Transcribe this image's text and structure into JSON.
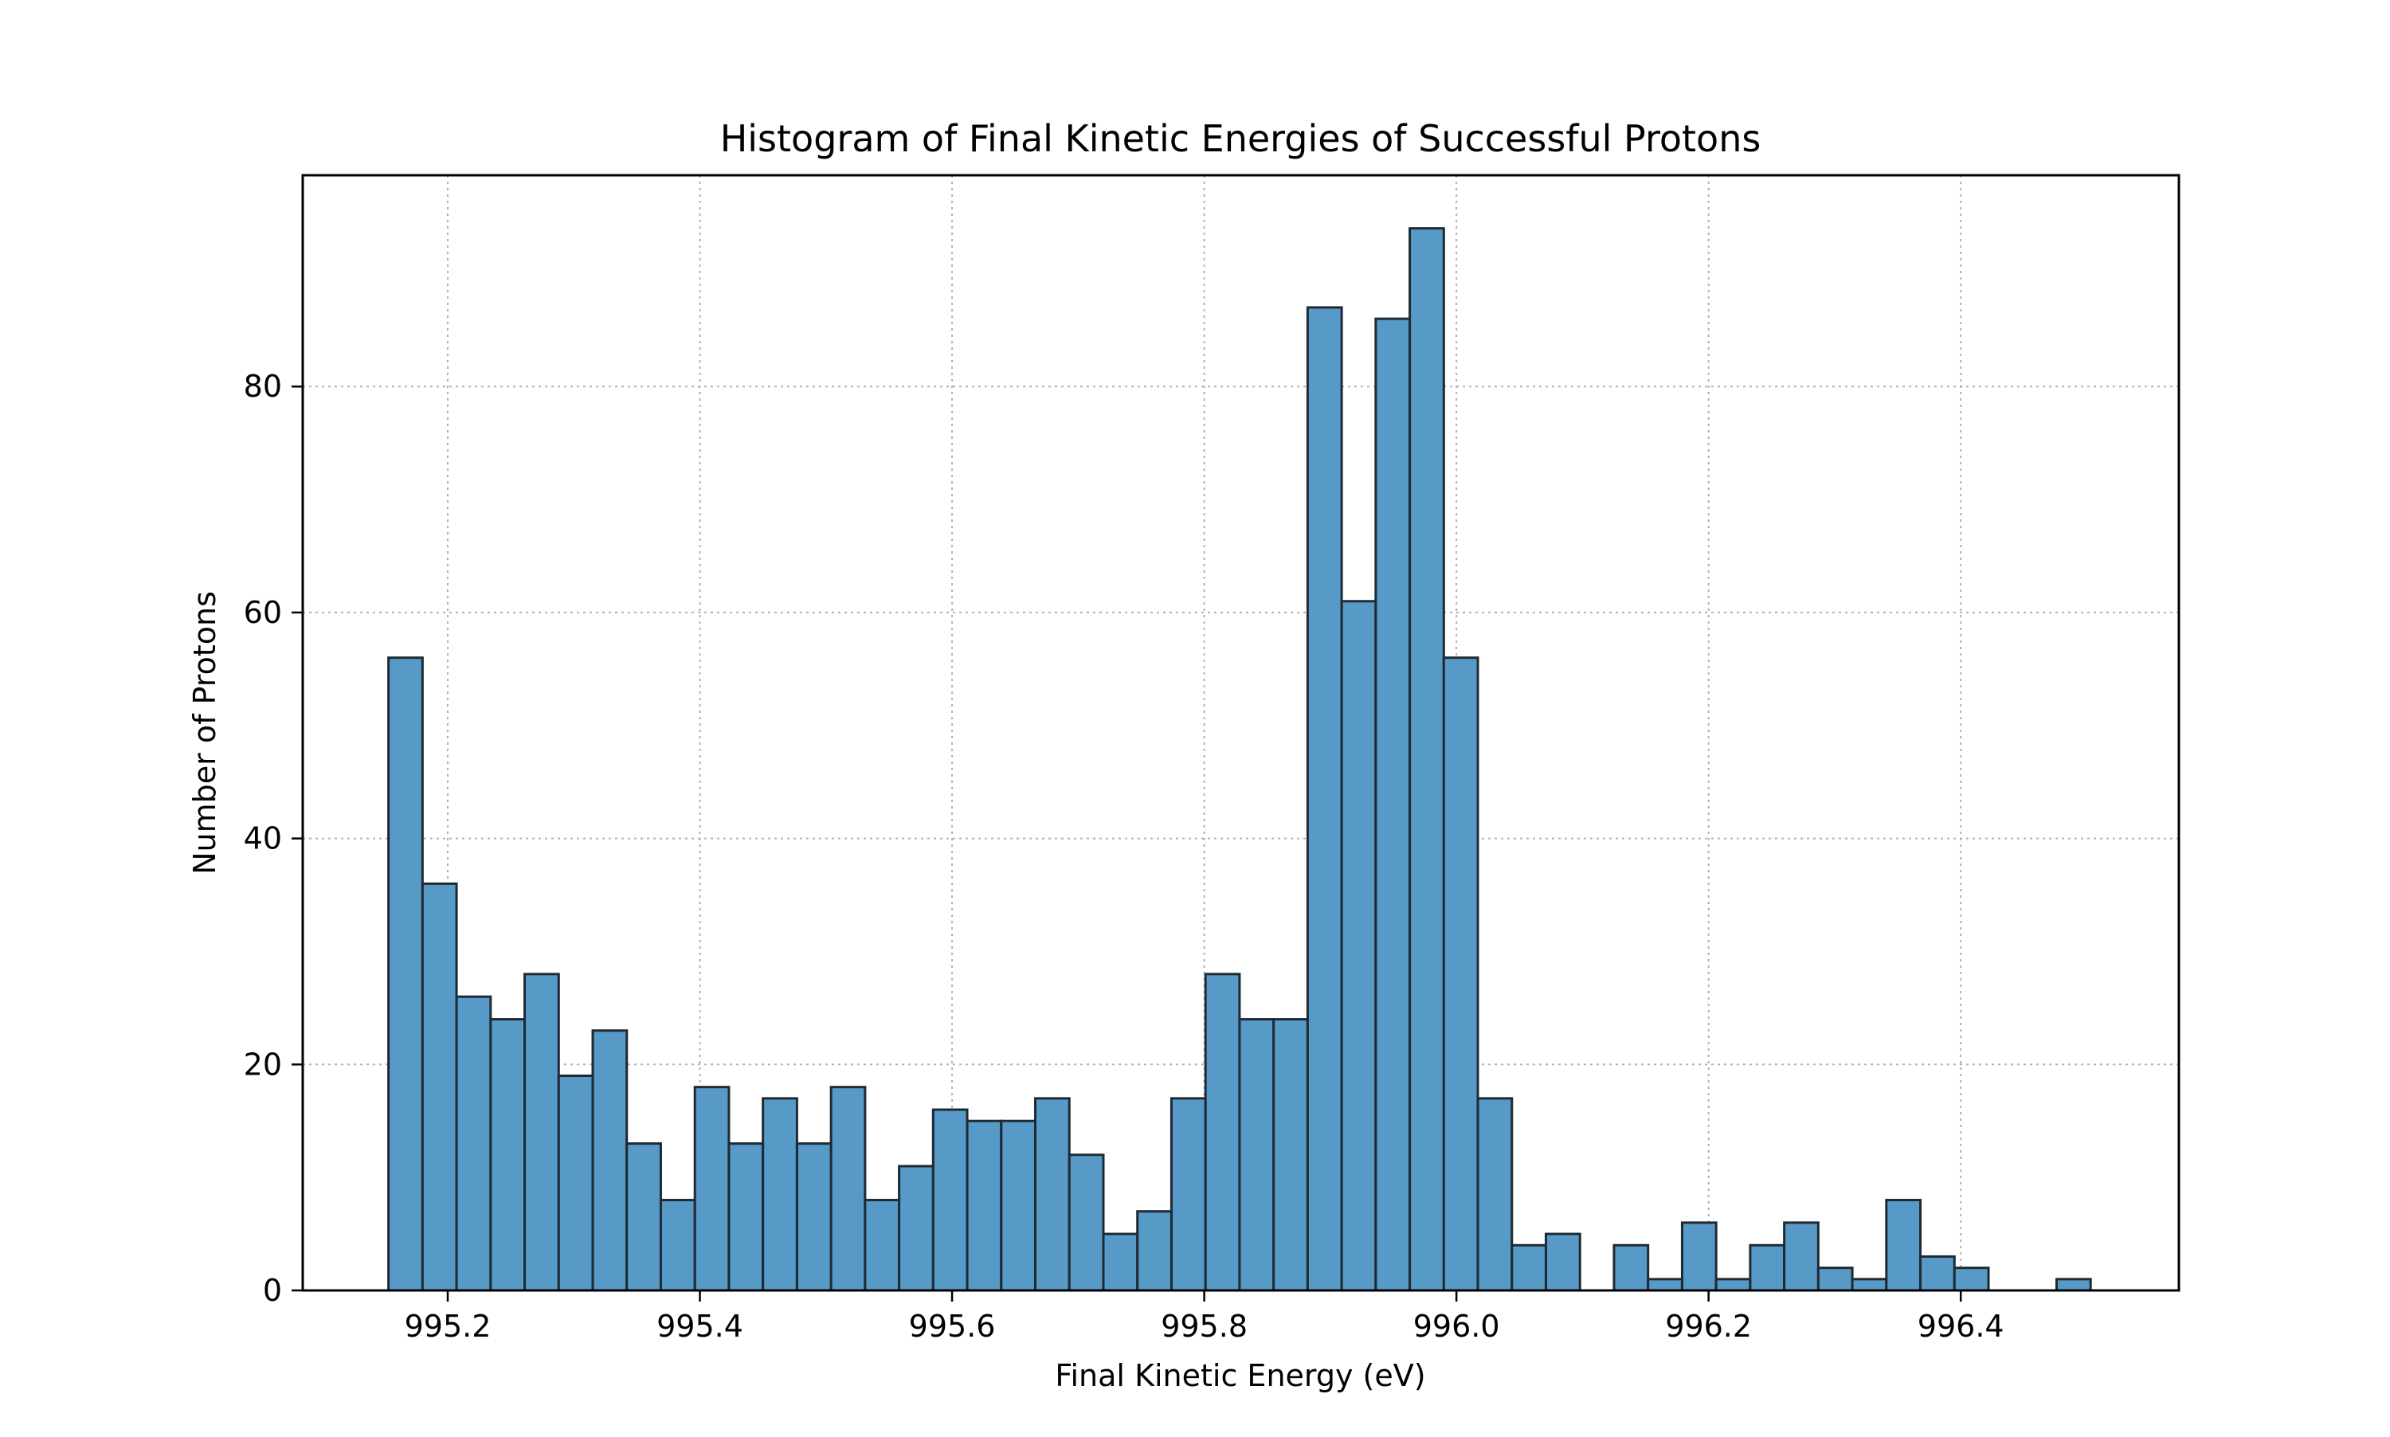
{
  "chart_data": {
    "type": "bar",
    "title": "Histogram of Final Kinetic Energies of Successful Protons",
    "xlabel": "Final Kinetic Energy (eV)",
    "ylabel": "Number of Protons",
    "xlim": [
      995.085,
      996.573
    ],
    "ylim": [
      0,
      98.7
    ],
    "xticks": [
      "995.2",
      "995.4",
      "995.6",
      "995.8",
      "996.0",
      "996.2",
      "996.4"
    ],
    "yticks": [
      "0",
      "20",
      "40",
      "60",
      "80"
    ],
    "grid": true,
    "bin_start": 995.153,
    "bin_width": 0.027,
    "values": [
      56,
      36,
      26,
      24,
      28,
      19,
      23,
      13,
      8,
      18,
      13,
      17,
      13,
      18,
      8,
      11,
      16,
      15,
      15,
      17,
      12,
      5,
      7,
      17,
      28,
      24,
      24,
      87,
      61,
      86,
      94,
      56,
      17,
      4,
      5,
      0,
      4,
      1,
      6,
      1,
      4,
      6,
      2,
      1,
      8,
      3,
      2,
      0,
      0,
      1
    ],
    "colors": {
      "bar_fill": "#5799c7",
      "bar_edge": "#1f2a33",
      "grid": "#b0b0b0",
      "axes": "#000000"
    }
  }
}
